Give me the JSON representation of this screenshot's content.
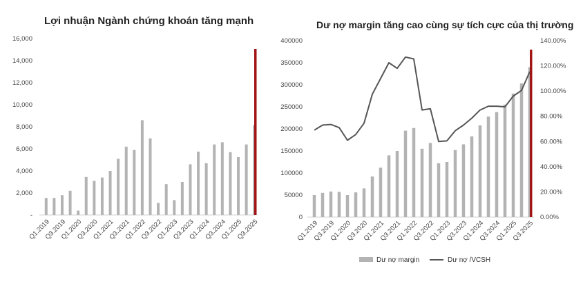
{
  "chart_data": [
    {
      "type": "bar",
      "title": "Lợi nhuận Ngành chứng khoán tăng mạnh",
      "categories": [
        "Q1.2019",
        "Q2.2019",
        "Q3.2019",
        "Q4.2019",
        "Q1.2020",
        "Q2.2020",
        "Q3.2020",
        "Q4.2020",
        "Q1.2021",
        "Q2.2021",
        "Q3.2021",
        "Q4.2021",
        "Q1.2022",
        "Q2.2022",
        "Q3.2022",
        "Q4.2022",
        "Q1.2023",
        "Q2.2023",
        "Q3.2023",
        "Q4.2023",
        "Q1.2024",
        "Q2.2024",
        "Q3.2024",
        "Q4.2024",
        "Q1.2025",
        "Q2.2025",
        "Q3.2025"
      ],
      "x_tick_labels": [
        "Q1.2019",
        "Q3.2019",
        "Q1.2020",
        "Q3.2020",
        "Q1.2021",
        "Q3.2021",
        "Q1.2022",
        "Q3.2022",
        "Q1.2023",
        "Q3.2023",
        "Q1.2024",
        "Q3.2024",
        "Q1.2025",
        "Q3.2025"
      ],
      "values": [
        1550,
        1550,
        1800,
        2200,
        400,
        3450,
        3100,
        3400,
        4000,
        5100,
        6200,
        5900,
        8600,
        6950,
        1100,
        2800,
        1350,
        3000,
        4600,
        5750,
        4700,
        6400,
        6600,
        5700,
        5250,
        6400,
        8150
      ],
      "ylim": [
        0,
        16000
      ],
      "y_ticks": [
        0,
        2000,
        4000,
        6000,
        8000,
        10000,
        12000,
        14000,
        16000
      ],
      "y_tick_labels": [
        "-",
        "2,000",
        "4,000",
        "6,000",
        "8,000",
        "10,000",
        "12,000",
        "14,000",
        "16,000"
      ],
      "bar_color": "#b3b3b3",
      "highlight_color": "#a31414",
      "grid": false,
      "legend": "none"
    },
    {
      "type": "bar+line",
      "title": "Dư nợ margin tăng cao cùng sự tích cực của thị trường",
      "categories": [
        "Q1.2019",
        "Q2.2019",
        "Q3.2019",
        "Q4.2019",
        "Q1.2020",
        "Q2.2020",
        "Q3.2020",
        "Q4.2020",
        "Q1.2021",
        "Q2.2021",
        "Q3.2021",
        "Q4.2021",
        "Q1.2022",
        "Q2.2022",
        "Q3.2022",
        "Q4.2022",
        "Q1.2023",
        "Q2.2023",
        "Q3.2023",
        "Q4.2023",
        "Q1.2024",
        "Q2.2024",
        "Q3.2024",
        "Q4.2024",
        "Q1.2025",
        "Q2.2025",
        "Q3.2025"
      ],
      "x_tick_labels": [
        "Q1.2019",
        "Q3.2019",
        "Q1.2020",
        "Q3.2020",
        "Q1.2021",
        "Q3.2021",
        "Q1.2022",
        "Q3.2022",
        "Q1.2023",
        "Q3.2023",
        "Q1.2024",
        "Q3.2024",
        "Q1.2025",
        "Q3.2025"
      ],
      "series": [
        {
          "name": "Dư nợ margin",
          "kind": "bar",
          "axis": "left",
          "color": "#b3b3b3",
          "values": [
            50000,
            55000,
            58000,
            57000,
            50000,
            56000,
            65000,
            92000,
            112000,
            140000,
            150000,
            196000,
            202000,
            155000,
            168000,
            122000,
            125000,
            152000,
            165000,
            183000,
            208000,
            228000,
            238000,
            255000,
            280000,
            303000,
            340000
          ]
        },
        {
          "name": "Dư nợ /VCSH",
          "kind": "line",
          "axis": "right",
          "color": "#555555",
          "values": [
            0.69,
            0.73,
            0.735,
            0.71,
            0.61,
            0.655,
            0.745,
            0.975,
            1.1,
            1.225,
            1.18,
            1.27,
            1.255,
            0.85,
            0.86,
            0.6,
            0.605,
            0.685,
            0.73,
            0.785,
            0.85,
            0.88,
            0.88,
            0.875,
            0.96,
            1.005,
            1.155
          ]
        }
      ],
      "ylim": [
        0,
        400000
      ],
      "y_ticks": [
        0,
        50000,
        100000,
        150000,
        200000,
        250000,
        300000,
        350000,
        400000
      ],
      "y_tick_labels": [
        "0",
        "50000",
        "100000",
        "150000",
        "200000",
        "250000",
        "300000",
        "350000",
        "400000"
      ],
      "y2lim": [
        0,
        1.4
      ],
      "y2_ticks": [
        0,
        0.2,
        0.4,
        0.6,
        0.8,
        1.0,
        1.2,
        1.4
      ],
      "y2_tick_labels": [
        "0.00%",
        "20.00%",
        "40.00%",
        "60.00%",
        "80.00%",
        "100.00%",
        "120.00%",
        "140.00%"
      ],
      "highlight_color": "#a31414",
      "grid": false,
      "legend": "bottom",
      "legend_labels": [
        "Dư nợ margin",
        "Dư nợ /VCSH"
      ]
    }
  ]
}
